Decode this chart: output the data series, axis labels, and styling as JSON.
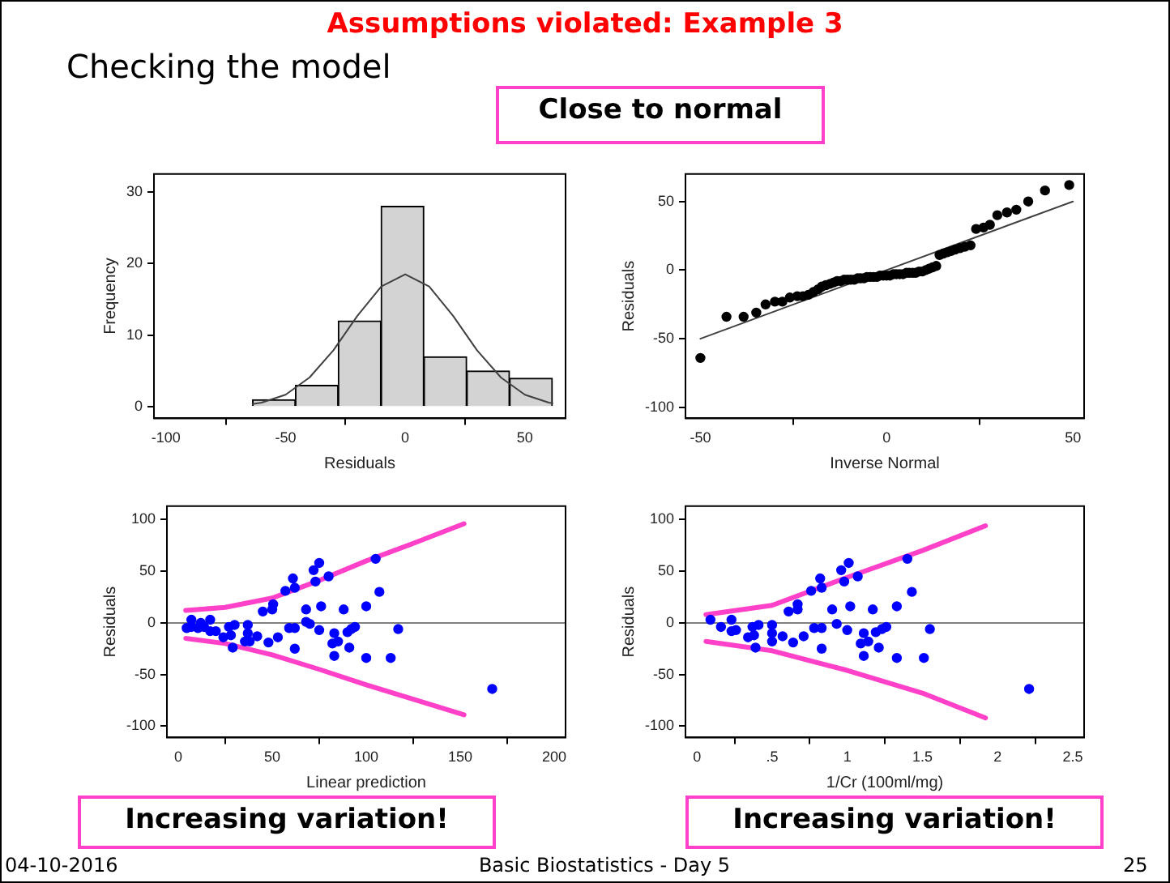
{
  "chart_data": [
    {
      "type": "other",
      "title": "Assumptions violated: Example 3",
      "annotations": [
        "Checking the model",
        "Close to normal",
        "Increasing variation!",
        "Increasing variation!",
        "04-10-2016",
        "Basic Biostatistics - Day 5",
        "25"
      ]
    },
    {
      "type": "histogram",
      "xlabel": "Residuals",
      "ylabel": "Frequency",
      "bins": [
        -63.8,
        -45.9,
        -28,
        -10.1,
        7.8,
        25.7,
        43.6,
        61.5
      ],
      "values": [
        1,
        3,
        12,
        28,
        7,
        5,
        4
      ],
      "color": "#d3d3d3",
      "series": [
        {
          "type": "line",
          "x": [
            -63.8,
            -60,
            -50,
            -40,
            -30,
            -20,
            -10,
            0,
            10,
            20,
            30,
            40,
            50,
            60,
            61.5
          ],
          "values": [
            0.4,
            0.6,
            1.7,
            4.1,
            7.9,
            12.7,
            16.8,
            18.5,
            16.8,
            12.7,
            7.9,
            4.1,
            1.7,
            0.6,
            0.5
          ],
          "color": "#404040"
        }
      ],
      "xlim": [
        -105,
        67
      ],
      "ylim": [
        -1.6,
        32.5
      ],
      "xticks": [
        -100,
        -50,
        0,
        50
      ],
      "yticks": [
        0,
        10,
        20,
        30
      ]
    },
    {
      "type": "scatter",
      "xlabel": "Inverse Normal",
      "ylabel": "Residuals",
      "series": [
        {
          "type": "scatter",
          "color": "#000000",
          "marker": "circle",
          "x": [
            -50,
            -43,
            -38.4,
            -35,
            -32.5,
            -30,
            -28,
            -26,
            -24,
            -22.5,
            -21,
            -19.7,
            -18.4,
            -17.4,
            -16.3,
            -15.2,
            -14.2,
            -13.3,
            -12.3,
            -11.4,
            -10.5,
            -9.6,
            -8.7,
            -7.8,
            -7,
            -6.1,
            -5.3,
            -4.4,
            -3.5,
            -2.6,
            -1.8,
            -0.9,
            0,
            0.9,
            1.8,
            2.6,
            3.5,
            4.4,
            5.3,
            6.1,
            7,
            7.8,
            8.7,
            9.6,
            10.5,
            11.4,
            12.3,
            13.3,
            14.2,
            15.2,
            16.3,
            17.4,
            18.4,
            19.7,
            21,
            22.5,
            24,
            26,
            27.7,
            29.7,
            32.3,
            34.8,
            38,
            42.5,
            49
          ],
          "values": [
            -64,
            -34,
            -34,
            -31,
            -25,
            -23,
            -23,
            -20,
            -19,
            -19,
            -18,
            -16,
            -14,
            -12,
            -11,
            -10,
            -9,
            -8,
            -8,
            -7,
            -7,
            -7,
            -7,
            -6,
            -6,
            -6,
            -5,
            -5,
            -5,
            -5,
            -4,
            -4,
            -4,
            -4,
            -3,
            -3,
            -3,
            -3,
            -2,
            -2,
            -2,
            -2,
            -1,
            -1,
            0,
            1,
            2,
            3,
            11,
            12,
            13,
            14,
            15,
            16,
            17,
            18,
            30,
            31,
            33,
            40,
            42,
            44,
            50,
            58,
            62
          ]
        },
        {
          "type": "line",
          "x": [
            -50,
            50
          ],
          "values": [
            -50,
            50
          ],
          "color": "#404040"
        }
      ],
      "xlim": [
        -54,
        53
      ],
      "ylim": [
        -108,
        70
      ],
      "xticks": [
        -50,
        0,
        50
      ],
      "yticks": [
        -100,
        -50,
        0,
        50
      ]
    },
    {
      "type": "scatter",
      "xlabel": "Linear prediction",
      "ylabel": "Residuals",
      "series": [
        {
          "type": "scatter",
          "color": "#0000ff",
          "marker": "circle",
          "x": [
            4.5,
            7,
            7,
            10.5,
            12,
            13.7,
            17,
            17,
            20,
            24,
            27,
            28,
            29,
            30,
            35.5,
            37,
            37,
            38,
            42,
            45,
            48,
            50,
            50.5,
            53,
            57,
            59,
            61,
            62,
            62,
            62,
            68,
            68,
            70,
            72,
            73,
            75,
            75,
            76,
            80,
            82,
            83,
            83,
            85,
            88,
            90,
            91,
            92,
            94,
            100,
            100,
            105,
            107,
            113,
            117,
            167
          ],
          "values": [
            -5,
            3,
            -4,
            -5,
            0,
            -4,
            3,
            -8,
            -8,
            -14,
            -4,
            -12,
            -24,
            -2,
            -18,
            -2,
            -10,
            -18,
            -13,
            11,
            -19,
            13,
            18,
            -14,
            31,
            -5,
            43,
            34,
            -25,
            -5,
            13,
            1,
            -1,
            51,
            40,
            -7,
            58,
            16,
            45,
            -20,
            -10,
            -32,
            -18,
            13,
            -9,
            -24,
            -6,
            -4,
            -34,
            16,
            62,
            30,
            -34,
            -6,
            -64
          ]
        },
        {
          "type": "line",
          "color": "#ff40c8",
          "x": [
            4,
            25,
            50,
            75,
            100,
            125,
            152
          ],
          "values": [
            12,
            15,
            24,
            41,
            60,
            77,
            96
          ]
        },
        {
          "type": "line",
          "color": "#ff40c8",
          "x": [
            4,
            25,
            50,
            75,
            100,
            125,
            152
          ],
          "values": [
            -15,
            -20,
            -31,
            -45,
            -60,
            -74,
            -89
          ]
        }
      ],
      "ref_lines": [
        {
          "axis": "y",
          "value": 0,
          "color": "#808080"
        }
      ],
      "xlim": [
        -6,
        206
      ],
      "ylim": [
        -111,
        113
      ],
      "xticks": [
        0,
        50,
        100,
        150,
        200
      ],
      "yticks": [
        -100,
        -50,
        0,
        50,
        100
      ]
    },
    {
      "type": "scatter",
      "xlabel": "1/Cr (100ml/mg)",
      "ylabel": "Residuals",
      "series": [
        {
          "type": "scatter",
          "color": "#0000ff",
          "marker": "circle",
          "x": [
            0.09,
            0.16,
            0.23,
            0.23,
            0.26,
            0.34,
            0.37,
            0.38,
            0.39,
            0.41,
            0.5,
            0.5,
            0.5,
            0.57,
            0.61,
            0.64,
            0.67,
            0.67,
            0.71,
            0.76,
            0.78,
            0.82,
            0.83,
            0.83,
            0.83,
            0.9,
            0.93,
            0.96,
            0.98,
            1,
            1.01,
            1.02,
            1.07,
            1.09,
            1.11,
            1.11,
            1.14,
            1.17,
            1.19,
            1.21,
            1.23,
            1.26,
            1.33,
            1.33,
            1.4,
            1.43,
            1.51,
            1.55,
            2.21
          ],
          "values": [
            3,
            -4,
            3,
            -8,
            -7,
            -14,
            -4,
            -12,
            -24,
            -2,
            -2,
            -10,
            -18,
            -13,
            11,
            -19,
            13,
            18,
            -13,
            31,
            -5,
            43,
            34,
            -25,
            -5,
            13,
            -1,
            51,
            40,
            -7,
            58,
            16,
            45,
            -20,
            -10,
            -32,
            -18,
            13,
            -9,
            -24,
            -6,
            -4,
            -34,
            16,
            62,
            30,
            -34,
            -6,
            -64
          ]
        },
        {
          "type": "line",
          "color": "#ff40c8",
          "x": [
            0.06,
            0.5,
            1,
            1.5,
            1.92
          ],
          "values": [
            8,
            17,
            44,
            70,
            94
          ]
        },
        {
          "type": "line",
          "color": "#ff40c8",
          "x": [
            0.06,
            0.5,
            1,
            1.5,
            1.92
          ],
          "values": [
            -18,
            -27,
            -46,
            -68,
            -92
          ]
        }
      ],
      "ref_lines": [
        {
          "axis": "y",
          "value": 0,
          "color": "#808080"
        }
      ],
      "xlim": [
        -0.076,
        2.576
      ],
      "ylim": [
        -111,
        113
      ],
      "xticks": [
        0,
        {
          "value": 0.5,
          "label": ".5"
        },
        1,
        1.5,
        2,
        2.5
      ],
      "yticks": [
        -100,
        -50,
        0,
        50,
        100
      ]
    }
  ]
}
